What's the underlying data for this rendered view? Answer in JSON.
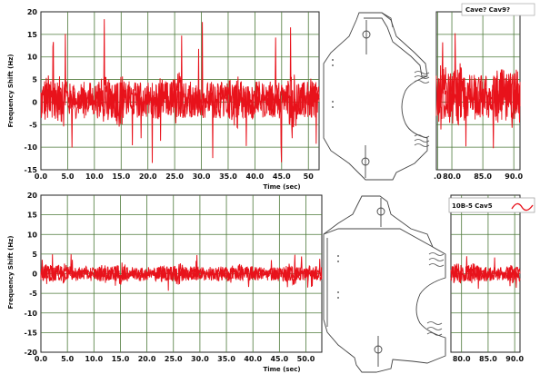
{
  "colors": {
    "signal": "#e8121b",
    "grid": "#4e7a3a",
    "frame": "#222222",
    "part_stroke": "#444444"
  },
  "chart_data": [
    {
      "type": "line",
      "panel": "top-left",
      "xlabel": "Time (sec)",
      "ylabel": "Frequency Shift (Hz)",
      "xlim": [
        0,
        52
      ],
      "ylim": [
        -15,
        20
      ],
      "x_ticks": [
        "0.0",
        "5.0",
        "10.0",
        "15.0",
        "20.0",
        "25.0",
        "30.0",
        "35.0",
        "40.0",
        "45.0",
        "50"
      ],
      "x_tick_values": [
        0,
        5,
        10,
        15,
        20,
        25,
        30,
        35,
        40,
        45,
        50
      ],
      "y_ticks": [
        "20",
        "15",
        "10",
        "5",
        "0",
        "-5",
        "-10",
        "-15"
      ],
      "y_tick_values": [
        20,
        15,
        10,
        5,
        0,
        -5,
        -10,
        -15
      ],
      "grid": true,
      "noise": {
        "center": 0.5,
        "amplitude": 5.5,
        "spike_max": 18,
        "spike_min": -14
      }
    },
    {
      "type": "line",
      "panel": "top-right",
      "xlabel": "",
      "ylabel": "",
      "xlim": [
        77.5,
        91
      ],
      "ylim": [
        -15,
        20
      ],
      "x_ticks": [
        ".0",
        "80.0",
        "85.0",
        "90.0"
      ],
      "x_tick_values": [
        77.7,
        80,
        85,
        90
      ],
      "legend": {
        "label": "Cave? Cav9?",
        "placement": "top-right"
      },
      "grid": true,
      "noise": {
        "center": 1,
        "amplitude": 7,
        "spike_max": 16,
        "spike_min": -12
      }
    },
    {
      "type": "line",
      "panel": "bottom-left",
      "xlabel": "Time (sec)",
      "ylabel": "Frequency Shift (Hz)",
      "xlim": [
        0,
        53
      ],
      "ylim": [
        -20,
        20
      ],
      "x_ticks": [
        "0.0",
        "5.0",
        "10.0",
        "15.0",
        "20.0",
        "25.0",
        "30.0",
        "35.0",
        "40.0",
        "45.0",
        "50.0"
      ],
      "x_tick_values": [
        0,
        5,
        10,
        15,
        20,
        25,
        30,
        35,
        40,
        45,
        50
      ],
      "y_ticks": [
        "20",
        "15",
        "10",
        "5",
        "0",
        "-5",
        "-10",
        "-15",
        "-20"
      ],
      "y_tick_values": [
        20,
        15,
        10,
        5,
        0,
        -5,
        -10,
        -15,
        -20
      ],
      "grid": true,
      "noise": {
        "center": 0,
        "amplitude": 2.5,
        "spike_max": 5,
        "spike_min": -5
      }
    },
    {
      "type": "line",
      "panel": "bottom-right",
      "xlabel": "",
      "ylabel": "",
      "xlim": [
        78,
        91
      ],
      "ylim": [
        -20,
        20
      ],
      "x_ticks": [
        "80.0",
        "85.0",
        "90.0"
      ],
      "x_tick_values": [
        80,
        85,
        90
      ],
      "legend": {
        "label": "10B-5 Cav5",
        "placement": "top-right"
      },
      "grid": true,
      "noise": {
        "center": 0,
        "amplitude": 2.6,
        "spike_max": 5,
        "spike_min": -5
      }
    }
  ],
  "illustrations": {
    "top": "cavity-part-drawing",
    "bottom": "cavity-part-drawing"
  }
}
